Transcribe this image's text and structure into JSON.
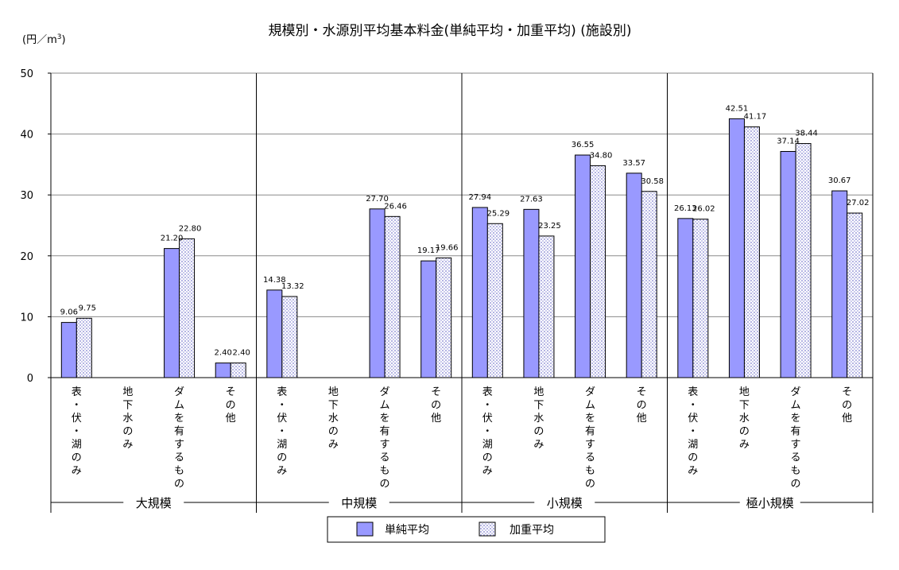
{
  "chart_data": {
    "type": "bar",
    "title": "規模別・水源別平均基本料金(単純平均・加重平均) (施設別)",
    "y_unit": "(円／m",
    "y_unit_sup": "3",
    "y_unit_close": ")",
    "ylim": [
      0,
      50
    ],
    "yticks": [
      0,
      10,
      20,
      30,
      40,
      50
    ],
    "grid": true,
    "legend_position": "bottom",
    "categories": [
      "表・伏・湖のみ",
      "地下水のみ",
      "ダムを有するもの",
      "その他"
    ],
    "groups": [
      {
        "label": "大規模",
        "items": [
          {
            "category": "表・伏・湖のみ",
            "simple": 9.06,
            "simple_label": "9.06",
            "weighted": 9.75,
            "weighted_label": "9.75"
          },
          {
            "category": "地下水のみ",
            "simple": null,
            "simple_label": "",
            "weighted": null,
            "weighted_label": ""
          },
          {
            "category": "ダムを有するもの",
            "simple": 21.2,
            "simple_label": "21.20",
            "weighted": 22.8,
            "weighted_label": "22.80"
          },
          {
            "category": "その他",
            "simple": 2.4,
            "simple_label": "2.40",
            "weighted": 2.4,
            "weighted_label": "2.40"
          }
        ]
      },
      {
        "label": "中規模",
        "items": [
          {
            "category": "表・伏・湖のみ",
            "simple": 14.38,
            "simple_label": "14.38",
            "weighted": 13.32,
            "weighted_label": "13.32"
          },
          {
            "category": "地下水のみ",
            "simple": null,
            "simple_label": "",
            "weighted": null,
            "weighted_label": ""
          },
          {
            "category": "ダムを有するもの",
            "simple": 27.7,
            "simple_label": "27.70",
            "weighted": 26.46,
            "weighted_label": "26.46"
          },
          {
            "category": "その他",
            "simple": 19.17,
            "simple_label": "19.17",
            "weighted": 19.66,
            "weighted_label": "19.66"
          }
        ]
      },
      {
        "label": "小規模",
        "items": [
          {
            "category": "表・伏・湖のみ",
            "simple": 27.94,
            "simple_label": "27.94",
            "weighted": 25.29,
            "weighted_label": "25.29"
          },
          {
            "category": "地下水のみ",
            "simple": 27.63,
            "simple_label": "27.63",
            "weighted": 23.25,
            "weighted_label": "23.25"
          },
          {
            "category": "ダムを有するもの",
            "simple": 36.55,
            "simple_label": "36.55",
            "weighted": 34.8,
            "weighted_label": "34.80"
          },
          {
            "category": "その他",
            "simple": 33.57,
            "simple_label": "33.57",
            "weighted": 30.58,
            "weighted_label": "30.58"
          }
        ]
      },
      {
        "label": "極小規模",
        "items": [
          {
            "category": "表・伏・湖のみ",
            "simple": 26.13,
            "simple_label": "26.13",
            "weighted": 26.02,
            "weighted_label": "26.02"
          },
          {
            "category": "地下水のみ",
            "simple": 42.51,
            "simple_label": "42.51",
            "weighted": 41.17,
            "weighted_label": "41.17"
          },
          {
            "category": "ダムを有するもの",
            "simple": 37.14,
            "simple_label": "37.14",
            "weighted": 38.44,
            "weighted_label": "38.44"
          },
          {
            "category": "その他",
            "simple": 30.67,
            "simple_label": "30.67",
            "weighted": 27.02,
            "weighted_label": "27.02"
          }
        ]
      }
    ],
    "series": [
      {
        "name": "単純平均",
        "key": "simple",
        "color": "#9999ff",
        "pattern": "solid"
      },
      {
        "name": "加重平均",
        "key": "weighted",
        "color": "#c8c8f0",
        "pattern": "dotted"
      }
    ]
  }
}
